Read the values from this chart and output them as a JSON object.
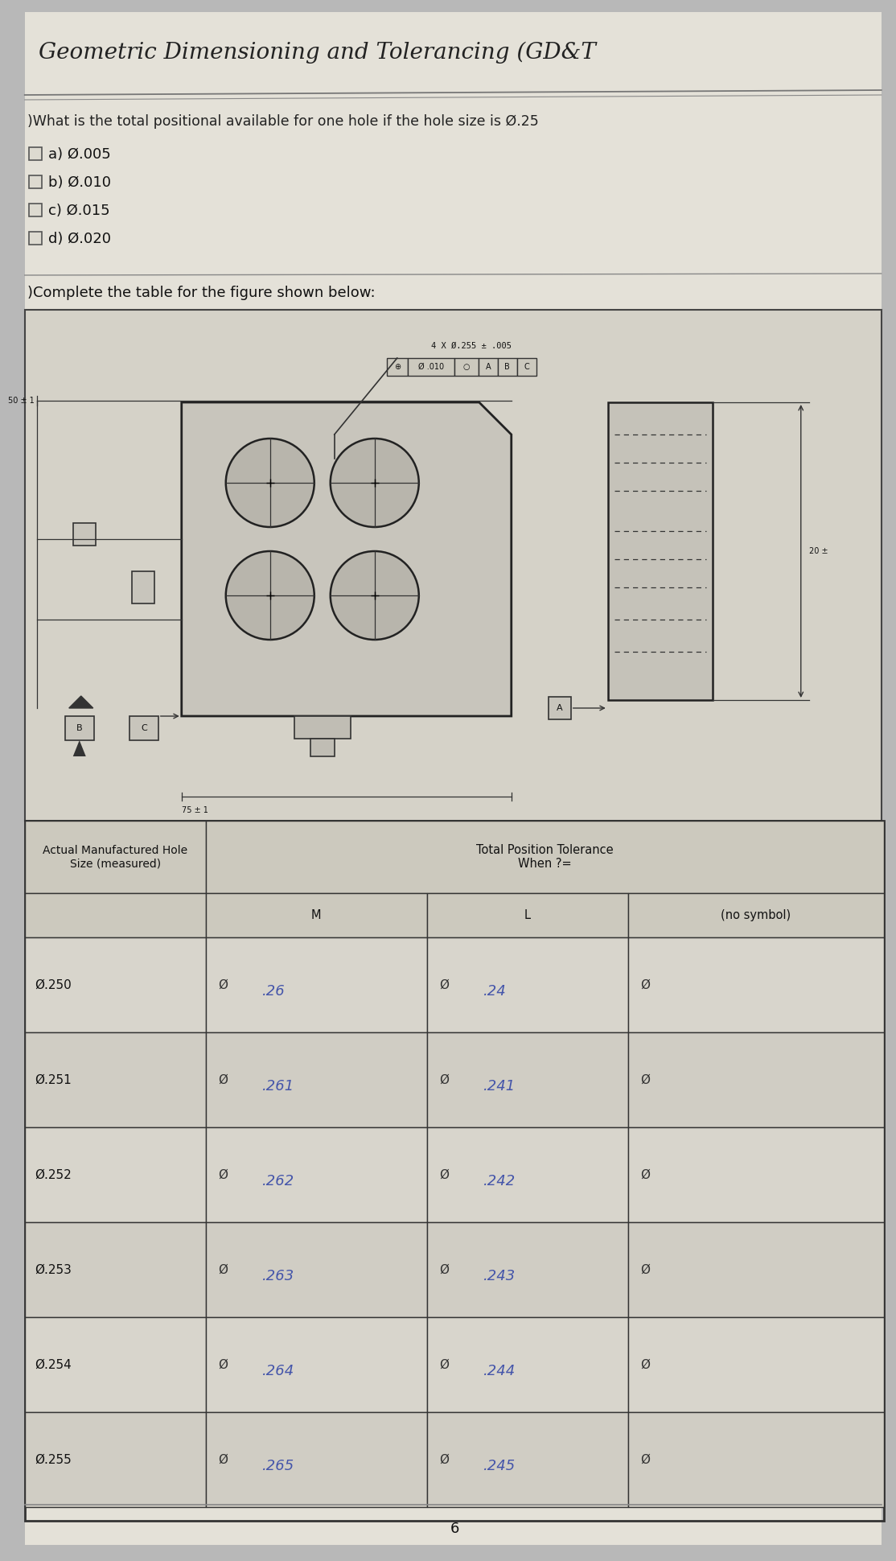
{
  "title": "Geometric Dimensioning and Tolerancing (GD&T",
  "bg_color": "#b8b8b8",
  "paper_color": "#d8d5cc",
  "title_fontsize": 20,
  "q1_text": ")What is the total positional available for one hole if the hole size is Ø.25",
  "q1_fontsize": 12.5,
  "choices": [
    "a) Ø.005",
    "b) Ø.010",
    "c) Ø.015",
    "d) Ø.020"
  ],
  "choice_fontsize": 13,
  "q2_text": ")Complete the table for the figure shown below:",
  "q2_fontsize": 13,
  "fcf_note": "4 X Ø.255 ± .005",
  "fcf_boxes": [
    "⊕",
    "Ø .010",
    "○",
    "A",
    "B",
    "C"
  ],
  "dim_50": "50 ± 1",
  "dim_75": "75 ± 1",
  "dim_20": "20 ±",
  "row_labels": [
    "Ø.250",
    "Ø.251",
    "Ø.252",
    "Ø.253",
    "Ø.254",
    "Ø.255"
  ],
  "m_vals": [
    ".26",
    ".261",
    ".262",
    ".263",
    ".264",
    ".265"
  ],
  "l_vals": [
    ".24",
    ".241",
    ".242",
    ".243",
    ".244",
    ".245"
  ],
  "footer": "6"
}
